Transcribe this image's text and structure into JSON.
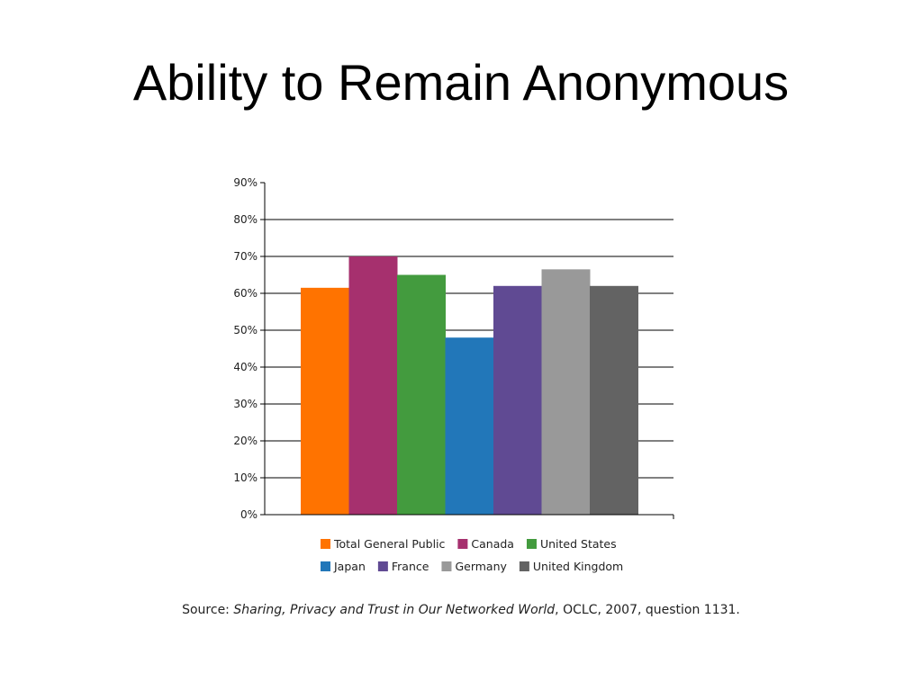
{
  "slide": {
    "title": "Ability to Remain Anonymous"
  },
  "chart_data": {
    "type": "bar",
    "title": "",
    "xlabel": "",
    "ylabel": "",
    "ylim": [
      0,
      90
    ],
    "yticks": [
      0,
      10,
      20,
      30,
      40,
      50,
      60,
      70,
      80,
      90
    ],
    "ytick_labels": [
      "0%",
      "10%",
      "20%",
      "30%",
      "40%",
      "50%",
      "60%",
      "70%",
      "80%",
      "90%"
    ],
    "grid": true,
    "legend_position": "bottom",
    "categories": [
      "Total General Public",
      "Canada",
      "United States",
      "Japan",
      "France",
      "Germany",
      "United Kingdom"
    ],
    "values": [
      61.5,
      70,
      65,
      48,
      62,
      66.5,
      62
    ],
    "colors": [
      "#ff7300",
      "#a6306e",
      "#439b3e",
      "#2277b9",
      "#604a93",
      "#999999",
      "#636363"
    ],
    "legend": {
      "row1": [
        "Total General Public",
        "Canada",
        "United States"
      ],
      "row2": [
        "Japan",
        "France",
        "Germany",
        "United Kingdom"
      ]
    }
  },
  "source": {
    "prefix": "Source: ",
    "work": "Sharing, Privacy and Trust in Our Networked World",
    "suffix": ", OCLC, 2007, question 1131."
  }
}
